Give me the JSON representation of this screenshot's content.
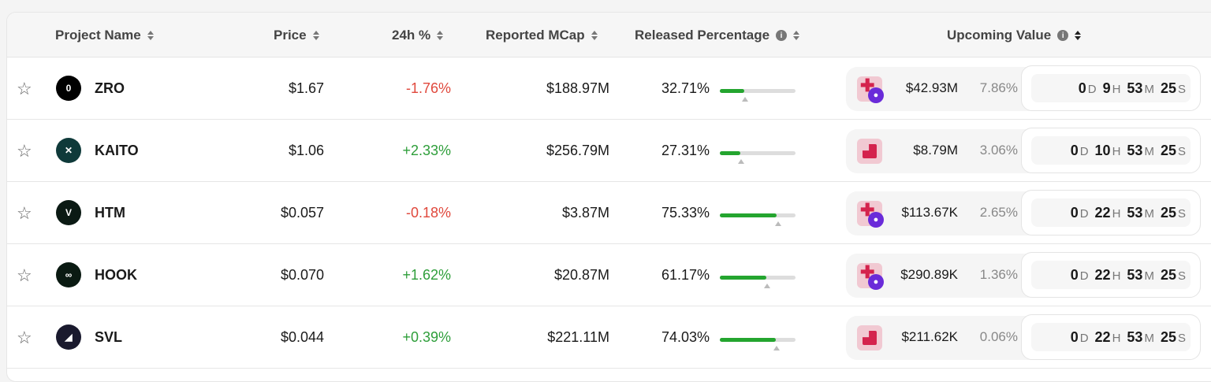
{
  "header": {
    "project_name": "Project Name",
    "price": "Price",
    "change_24h": "24h %",
    "reported_mcap": "Reported MCap",
    "released_percentage": "Released Percentage",
    "upcoming_value": "Upcoming Value",
    "info_icon": "i"
  },
  "units": {
    "d": "D",
    "h": "H",
    "m": "M",
    "s": "S"
  },
  "rows": [
    {
      "symbol": "ZRO",
      "logo_glyph": "0",
      "logo_color": "#000000",
      "price": "$1.67",
      "change": "-1.76%",
      "dir": "neg",
      "mcap": "$188.97M",
      "released": "32.71%",
      "released_fraction": 0.3271,
      "marker_fraction": 0.33,
      "unlock_icon": "cliff-plus-person",
      "upcoming": "$42.93M",
      "upcoming_pct": "7.86%",
      "d": "0",
      "h": "9",
      "m": "53",
      "s": "25"
    },
    {
      "symbol": "KAITO",
      "logo_glyph": "✕",
      "logo_color": "#0f3a3a",
      "price": "$1.06",
      "change": "+2.33%",
      "dir": "pos",
      "mcap": "$256.79M",
      "released": "27.31%",
      "released_fraction": 0.2731,
      "marker_fraction": 0.28,
      "unlock_icon": "cliff",
      "upcoming": "$8.79M",
      "upcoming_pct": "3.06%",
      "d": "0",
      "h": "10",
      "m": "53",
      "s": "25"
    },
    {
      "symbol": "HTM",
      "logo_glyph": "V",
      "logo_color": "#0b1a14",
      "price": "$0.057",
      "change": "-0.18%",
      "dir": "neg",
      "mcap": "$3.87M",
      "released": "75.33%",
      "released_fraction": 0.7533,
      "marker_fraction": 0.77,
      "unlock_icon": "cliff-plus-person",
      "upcoming": "$113.67K",
      "upcoming_pct": "2.65%",
      "d": "0",
      "h": "22",
      "m": "53",
      "s": "25"
    },
    {
      "symbol": "HOOK",
      "logo_glyph": "∞",
      "logo_color": "#0a1a12",
      "price": "$0.070",
      "change": "+1.62%",
      "dir": "pos",
      "mcap": "$20.87M",
      "released": "61.17%",
      "released_fraction": 0.6117,
      "marker_fraction": 0.63,
      "unlock_icon": "cliff-plus-person",
      "upcoming": "$290.89K",
      "upcoming_pct": "1.36%",
      "d": "0",
      "h": "22",
      "m": "53",
      "s": "25"
    },
    {
      "symbol": "SVL",
      "logo_glyph": "◢",
      "logo_color": "#1a1a2e",
      "price": "$0.044",
      "change": "+0.39%",
      "dir": "pos",
      "mcap": "$221.11M",
      "released": "74.03%",
      "released_fraction": 0.7403,
      "marker_fraction": 0.75,
      "unlock_icon": "cliff",
      "upcoming": "$211.62K",
      "upcoming_pct": "0.06%",
      "d": "0",
      "h": "22",
      "m": "53",
      "s": "25"
    }
  ]
}
